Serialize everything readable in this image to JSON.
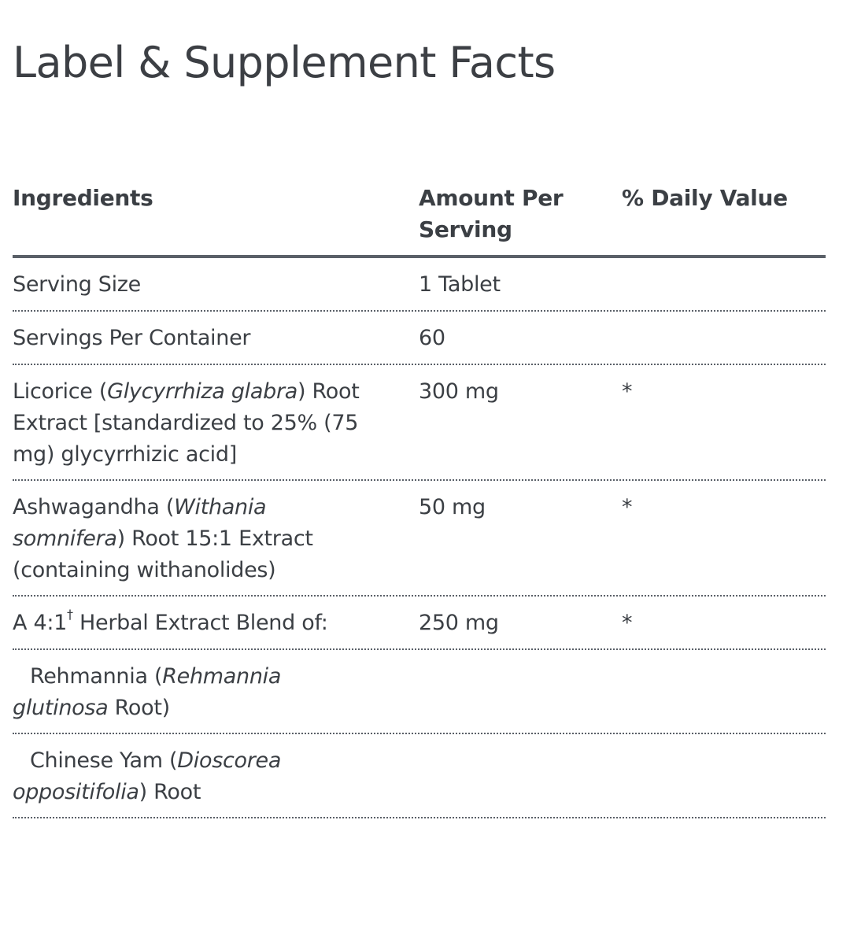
{
  "page": {
    "title": "Label & Supplement Facts"
  },
  "table": {
    "headers": {
      "ingredients": "Ingredients",
      "amount": "Amount Per Serving",
      "daily_value": "% Daily Value"
    },
    "rows": [
      {
        "name_parts": [
          "Serving Size"
        ],
        "amount": "1 Tablet",
        "daily_value": ""
      },
      {
        "name_parts": [
          "Servings Per Container"
        ],
        "amount": "60",
        "daily_value": ""
      },
      {
        "name_parts": [
          "Licorice (",
          "Glycyrrhiza glabra",
          ") Root Extract [standardized to 25% (75 mg) glycyrrhizic acid]"
        ],
        "amount": "300 mg",
        "daily_value": "*"
      },
      {
        "name_parts": [
          "Ashwagandha (",
          "Withania somnifera",
          ") Root 15:1 Extract (containing withanolides)"
        ],
        "amount": "50 mg",
        "daily_value": "*"
      },
      {
        "name_parts": [
          "A 4:1",
          "†",
          " Herbal Extract Blend of:"
        ],
        "amount": "250 mg",
        "daily_value": "*"
      },
      {
        "name_parts": [
          "Rehmannia (",
          "Rehmannia glutinosa",
          " Root)"
        ],
        "amount": "",
        "daily_value": ""
      },
      {
        "name_parts": [
          "Chinese Yam (",
          "Dioscorea oppositifolia",
          ") Root"
        ],
        "amount": "",
        "daily_value": ""
      }
    ]
  }
}
